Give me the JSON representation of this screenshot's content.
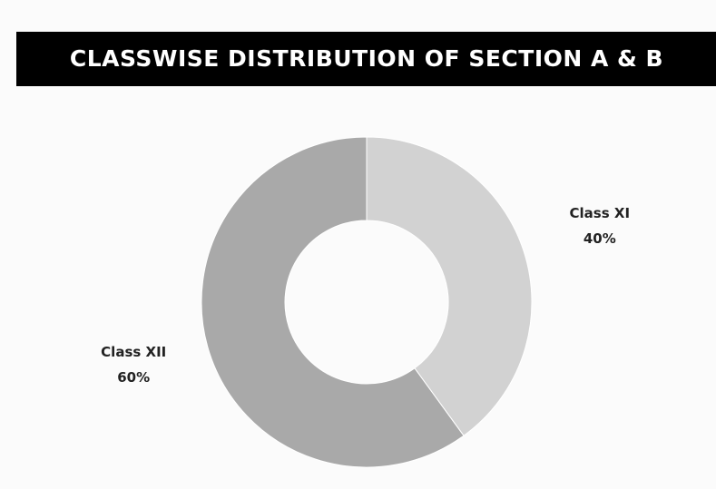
{
  "chart_data": {
    "type": "donut",
    "title": "CLASSWISE DISTRIBUTION OF SECTION A & B",
    "categories": [
      "Class XI",
      "Class XII"
    ],
    "values": [
      40,
      60
    ],
    "value_labels": [
      "40%",
      "60%"
    ],
    "colors": [
      "#d2d2d2",
      "#a9a9a9"
    ]
  }
}
